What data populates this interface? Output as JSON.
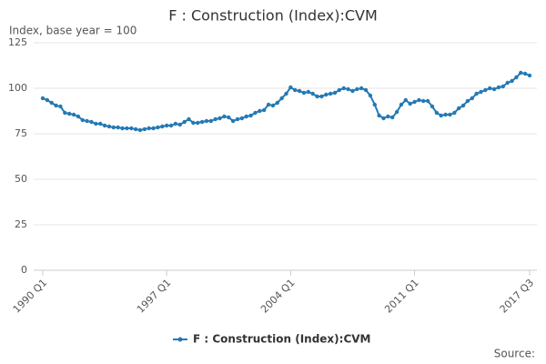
{
  "chart_data": {
    "type": "line",
    "title": "F : Construction (Index):CVM",
    "y_label": "Index, base year = 100",
    "source": "Source:",
    "categories": [
      "1990 Q1",
      null,
      null,
      null,
      null,
      null,
      null,
      null,
      null,
      null,
      null,
      null,
      null,
      null,
      null,
      null,
      null,
      null,
      null,
      null,
      null,
      null,
      null,
      null,
      null,
      null,
      null,
      null,
      "1997 Q1",
      null,
      null,
      null,
      null,
      null,
      null,
      null,
      null,
      null,
      null,
      null,
      null,
      null,
      null,
      null,
      null,
      null,
      null,
      null,
      null,
      null,
      null,
      null,
      null,
      null,
      null,
      null,
      "2004 Q1",
      null,
      null,
      null,
      null,
      null,
      null,
      null,
      null,
      null,
      null,
      null,
      null,
      null,
      null,
      null,
      null,
      null,
      null,
      null,
      null,
      null,
      null,
      null,
      null,
      null,
      null,
      null,
      "2011 Q1",
      null,
      null,
      null,
      null,
      null,
      null,
      null,
      null,
      null,
      null,
      null,
      null,
      null,
      null,
      null,
      null,
      null,
      null,
      null,
      null,
      null,
      null,
      null,
      null,
      null,
      "2017 Q3"
    ],
    "series": [
      {
        "name": "F : Construction (Index):CVM",
        "color": "#2479b5",
        "values": [
          94.5,
          93.5,
          92,
          90.5,
          90,
          86.5,
          86,
          85.5,
          84.5,
          82.5,
          82,
          81.5,
          80.5,
          80.5,
          79.5,
          79,
          78.5,
          78.5,
          78,
          78,
          78,
          77.5,
          77,
          77.5,
          78,
          78,
          78.5,
          79,
          79.5,
          79.5,
          80.5,
          80,
          81.5,
          83,
          81,
          81,
          81.5,
          82,
          82,
          83,
          83.5,
          84.5,
          84,
          82,
          83,
          83.5,
          84.5,
          85,
          86.5,
          87.5,
          88,
          91,
          90.5,
          92,
          94.5,
          97,
          100.5,
          99,
          98.5,
          97.5,
          98,
          97,
          95.5,
          95.5,
          96.5,
          97,
          97.5,
          99,
          100,
          99.5,
          98.5,
          99.5,
          100,
          99,
          96,
          91,
          85,
          83.5,
          84.5,
          84,
          87,
          91,
          93.5,
          91.5,
          92.5,
          93.5,
          93,
          93,
          90,
          86.5,
          85,
          85.5,
          85.5,
          86.5,
          89,
          90.5,
          93,
          94.5,
          97,
          98,
          99,
          100,
          99.5,
          100.5,
          101,
          103,
          104,
          106,
          108.5,
          108,
          107
        ]
      }
    ],
    "ylim": [
      0,
      125
    ],
    "yticks": [
      0,
      25,
      50,
      75,
      100,
      125
    ],
    "grid": true
  }
}
